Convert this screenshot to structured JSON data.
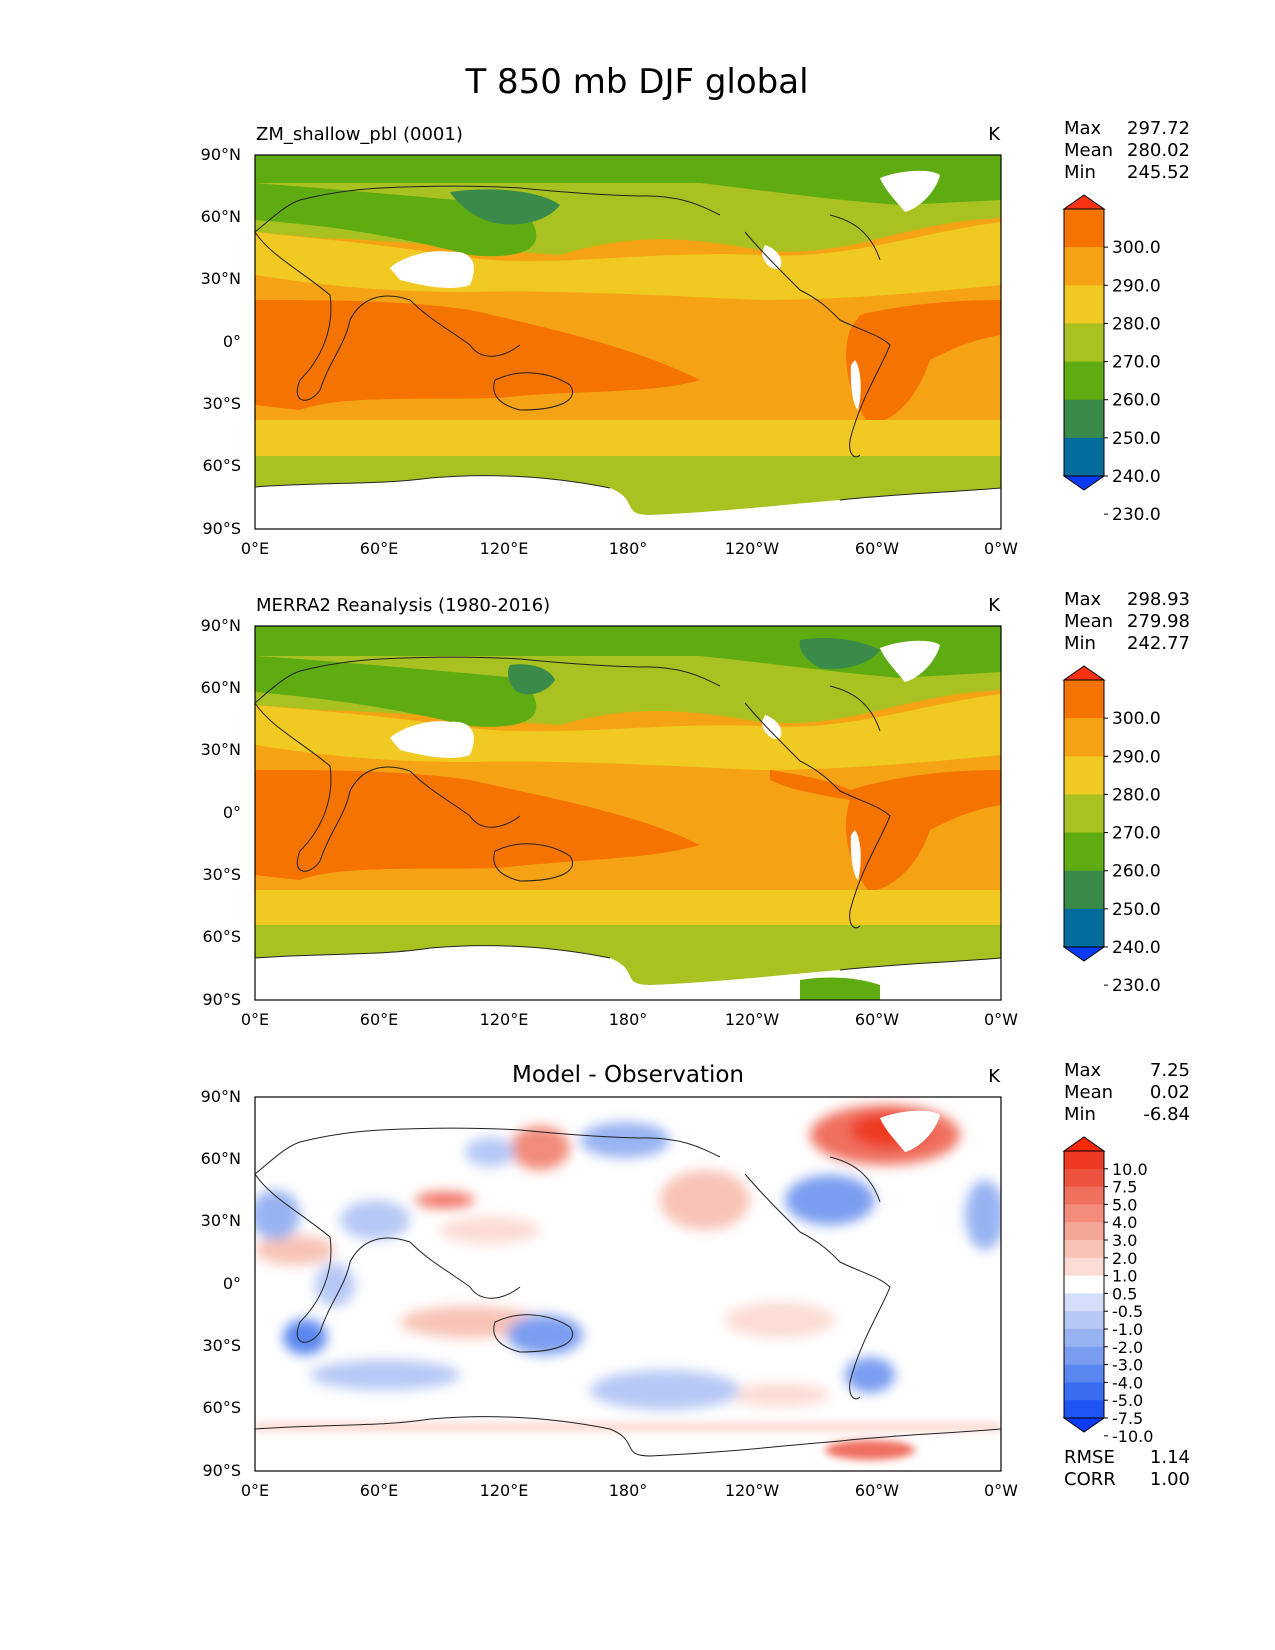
{
  "title": "T 850 mb DJF global",
  "lon_labels": [
    "0°E",
    "60°E",
    "120°E",
    "180°",
    "120°W",
    "60°W",
    "0°W"
  ],
  "lat_labels": [
    "90°N",
    "60°N",
    "30°N",
    "0°",
    "30°S",
    "60°S",
    "90°S"
  ],
  "panels": [
    {
      "id": "model",
      "title": "ZM_shallow_pbl (0001)",
      "units": "K",
      "stats": {
        "max_label": "Max",
        "max": "297.72",
        "mean_label": "Mean",
        "mean": "280.02",
        "min_label": "Min",
        "min": "245.52"
      },
      "colorbar": {
        "labels": [
          "300.0",
          "290.0",
          "280.0",
          "270.0",
          "260.0",
          "250.0",
          "240.0",
          "230.0"
        ],
        "colors": [
          "#0b3bf5",
          "#006d9c",
          "#3a8a4a",
          "#5fab12",
          "#a9c222",
          "#f0c922",
          "#f5a315",
          "#f57300",
          "#f93312"
        ]
      }
    },
    {
      "id": "obs",
      "title": "MERRA2 Reanalysis (1980-2016)",
      "units": "K",
      "stats": {
        "max_label": "Max",
        "max": "298.93",
        "mean_label": "Mean",
        "mean": "279.98",
        "min_label": "Min",
        "min": "242.77"
      },
      "colorbar": {
        "labels": [
          "300.0",
          "290.0",
          "280.0",
          "270.0",
          "260.0",
          "250.0",
          "240.0",
          "230.0"
        ],
        "colors": [
          "#0b3bf5",
          "#006d9c",
          "#3a8a4a",
          "#5fab12",
          "#a9c222",
          "#f0c922",
          "#f5a315",
          "#f57300",
          "#f93312"
        ]
      }
    },
    {
      "id": "diff",
      "title": "Model - Observation",
      "units": "K",
      "stats": {
        "max_label": "Max",
        "max": "7.25",
        "mean_label": "Mean",
        "mean": "0.02",
        "min_label": "Min",
        "min": "-6.84"
      },
      "colorbar": {
        "labels": [
          "10.0",
          "7.5",
          "5.0",
          "4.0",
          "3.0",
          "2.0",
          "1.0",
          "0.5",
          "-0.5",
          "-1.0",
          "-2.0",
          "-3.0",
          "-4.0",
          "-5.0",
          "-7.5",
          "-10.0"
        ],
        "colors": [
          "#0b3bf5",
          "#1f55f5",
          "#3a6cf2",
          "#5a86ef",
          "#7a9df0",
          "#98b3f2",
          "#b6c8f5",
          "#d3defa",
          "#ffffff",
          "#fcdcd4",
          "#f8c3b6",
          "#f5a797",
          "#f28b79",
          "#f0705e",
          "#ee5340",
          "#ee3a22",
          "#f92a0a"
        ]
      },
      "metrics": {
        "rmse_label": "RMSE",
        "rmse": "1.14",
        "corr_label": "CORR",
        "corr": "1.00"
      }
    }
  ]
}
